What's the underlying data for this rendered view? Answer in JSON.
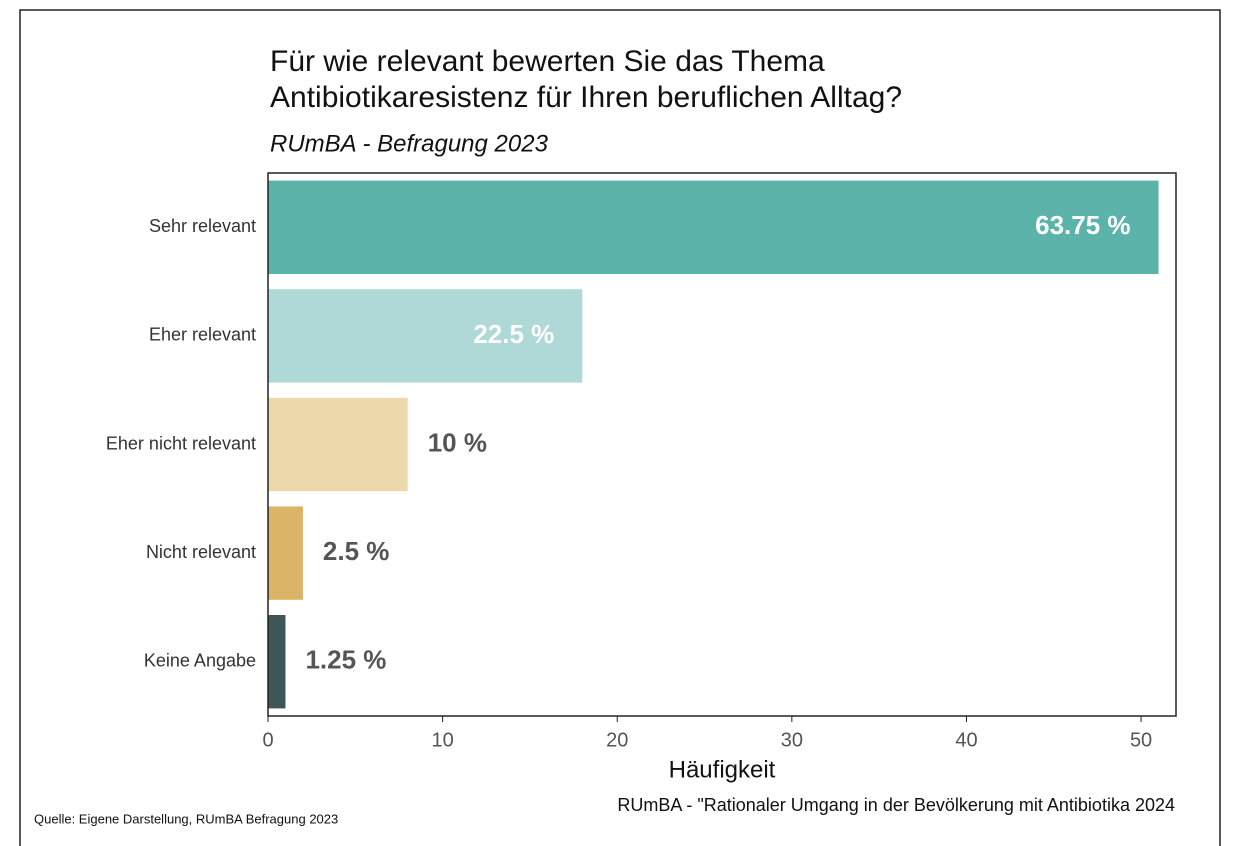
{
  "chart_data": {
    "type": "hbar",
    "title": "Für wie relevant bewerten Sie das Thema Antibiotikaresistenz für Ihren beruflichen Alltag?",
    "subtitle": "RUmBA - Befragung 2023",
    "x_label": "Häufigkeit",
    "categories": [
      "Sehr relevant",
      "Eher relevant",
      "Eher nicht relevant",
      "Nicht relevant",
      "Keine Angabe"
    ],
    "values": [
      51,
      18,
      8,
      2,
      1
    ],
    "value_labels": [
      "63.75 %",
      "22.5 %",
      "10 %",
      "2.5 %",
      "1.25 %"
    ],
    "colors": [
      "#5bb3aa",
      "#aed9d6",
      "#edd8ab",
      "#dbb467",
      "#3f5656"
    ],
    "xlim": [
      0,
      52
    ],
    "xticks": [
      0,
      10,
      20,
      30,
      40,
      50
    ],
    "source": "Quelle: Eigene Darstellung, RUmBA Befragung 2023",
    "caption": "RUmBA - \"Rationaler Umgang in der Bevölkerung mit Antibiotika 2024"
  }
}
